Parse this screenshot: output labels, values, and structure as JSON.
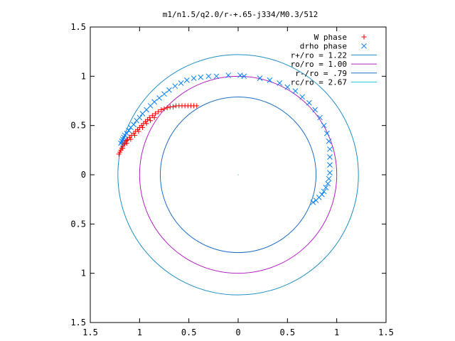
{
  "chart_data": {
    "type": "scatter",
    "title": "m1/n1.5/q2.0/r-+.65-j334/M0.3/512",
    "xlabel": "",
    "ylabel": "",
    "xlim": [
      -1.5,
      1.5
    ],
    "ylim": [
      -1.5,
      1.5
    ],
    "x_ticks": [
      -1.5,
      -1,
      -0.5,
      0,
      0.5,
      1,
      1.5
    ],
    "x_tick_labels": [
      "1.5",
      "1",
      "0.5",
      "0",
      "0.5",
      "1",
      "1.5"
    ],
    "y_ticks": [
      1.5,
      1,
      0.5,
      0,
      -0.5,
      -1,
      -1.5
    ],
    "y_tick_labels": [
      "1.5",
      "1",
      "0.5",
      "0",
      "0.5",
      "1",
      "1.5"
    ],
    "grid": false,
    "legend_position": "top-right",
    "legend": [
      {
        "label": "W phase",
        "marker": "+",
        "color": "#ff0000"
      },
      {
        "label": "drho phase",
        "marker": "x",
        "color": "#0080ff"
      },
      {
        "label": "r+/ro = 1.22",
        "line": true,
        "color": "#1f8fc4"
      },
      {
        "label": "ro/ro = 1.00",
        "line": true,
        "color": "#b020c0"
      },
      {
        "label": "r-/ro = .79",
        "line": true,
        "color": "#1f6fc4"
      },
      {
        "label": "rc/ro = 2.67",
        "line": true,
        "color": "#30c8d8"
      }
    ],
    "circles": [
      {
        "r": 1.22,
        "color": "#1f8fc4"
      },
      {
        "r": 1.0,
        "color": "#b020c0"
      },
      {
        "r": 0.79,
        "color": "#1f6fc4"
      }
    ],
    "series": [
      {
        "name": "W phase",
        "marker": "+",
        "color": "#ff0000",
        "points": [
          [
            -1.21,
            0.21
          ],
          [
            -1.2,
            0.23
          ],
          [
            -1.19,
            0.25
          ],
          [
            -1.18,
            0.27
          ],
          [
            -1.17,
            0.29
          ],
          [
            -1.16,
            0.31
          ],
          [
            -1.15,
            0.32
          ],
          [
            -1.14,
            0.34
          ],
          [
            -1.13,
            0.35
          ],
          [
            -1.12,
            0.36
          ],
          [
            -1.1,
            0.38
          ],
          [
            -1.08,
            0.4
          ],
          [
            -1.06,
            0.42
          ],
          [
            -1.04,
            0.44
          ],
          [
            -1.02,
            0.46
          ],
          [
            -1.0,
            0.48
          ],
          [
            -0.98,
            0.5
          ],
          [
            -0.96,
            0.52
          ],
          [
            -0.94,
            0.54
          ],
          [
            -0.92,
            0.56
          ],
          [
            -0.9,
            0.58
          ],
          [
            -0.87,
            0.6
          ],
          [
            -0.84,
            0.62
          ],
          [
            -0.81,
            0.64
          ],
          [
            -0.78,
            0.66
          ],
          [
            -0.75,
            0.67
          ],
          [
            -0.72,
            0.68
          ],
          [
            -0.69,
            0.69
          ],
          [
            -0.66,
            0.69
          ],
          [
            -0.63,
            0.7
          ],
          [
            -0.6,
            0.7
          ],
          [
            -0.57,
            0.7
          ],
          [
            -0.54,
            0.7
          ],
          [
            -0.51,
            0.7
          ],
          [
            -0.48,
            0.7
          ],
          [
            -0.45,
            0.7
          ],
          [
            -0.42,
            0.7
          ],
          [
            -1.17,
            0.27
          ],
          [
            -1.13,
            0.32
          ],
          [
            -1.09,
            0.36
          ],
          [
            -1.05,
            0.4
          ],
          [
            -1.01,
            0.44
          ],
          [
            -0.97,
            0.48
          ],
          [
            -0.93,
            0.52
          ],
          [
            -0.89,
            0.55
          ],
          [
            -0.85,
            0.58
          ]
        ]
      },
      {
        "name": "drho phase",
        "marker": "x",
        "color": "#0080ff",
        "points": [
          [
            -1.19,
            0.32
          ],
          [
            -1.18,
            0.34
          ],
          [
            -1.17,
            0.36
          ],
          [
            -1.16,
            0.38
          ],
          [
            -1.15,
            0.4
          ],
          [
            -1.13,
            0.42
          ],
          [
            -1.11,
            0.45
          ],
          [
            -1.09,
            0.48
          ],
          [
            -1.06,
            0.51
          ],
          [
            -1.03,
            0.55
          ],
          [
            -1.0,
            0.58
          ],
          [
            -0.97,
            0.62
          ],
          [
            -0.93,
            0.66
          ],
          [
            -0.89,
            0.7
          ],
          [
            -0.85,
            0.74
          ],
          [
            -0.8,
            0.78
          ],
          [
            -0.75,
            0.82
          ],
          [
            -0.7,
            0.86
          ],
          [
            -0.64,
            0.9
          ],
          [
            -0.58,
            0.93
          ],
          [
            -0.52,
            0.96
          ],
          [
            -0.45,
            0.98
          ],
          [
            -0.38,
            0.99
          ],
          [
            -0.3,
            1.0
          ],
          [
            -0.22,
            1.0
          ],
          [
            -0.1,
            1.01
          ],
          [
            0.02,
            1.01
          ],
          [
            0.06,
            1.0
          ],
          [
            0.22,
            0.98
          ],
          [
            0.32,
            0.96
          ],
          [
            0.42,
            0.93
          ],
          [
            0.5,
            0.89
          ],
          [
            0.58,
            0.85
          ],
          [
            0.65,
            0.79
          ],
          [
            0.72,
            0.73
          ],
          [
            0.78,
            0.66
          ],
          [
            0.83,
            0.58
          ],
          [
            0.87,
            0.5
          ],
          [
            0.9,
            0.42
          ],
          [
            0.92,
            0.34
          ],
          [
            0.93,
            0.26
          ],
          [
            0.93,
            0.18
          ],
          [
            0.93,
            0.1
          ],
          [
            0.93,
            0.02
          ],
          [
            0.92,
            -0.04
          ],
          [
            0.91,
            -0.09
          ],
          [
            0.89,
            -0.13
          ],
          [
            0.87,
            -0.17
          ],
          [
            0.85,
            -0.2
          ],
          [
            0.82,
            -0.23
          ],
          [
            0.79,
            -0.26
          ],
          [
            0.76,
            -0.28
          ]
        ]
      }
    ]
  }
}
